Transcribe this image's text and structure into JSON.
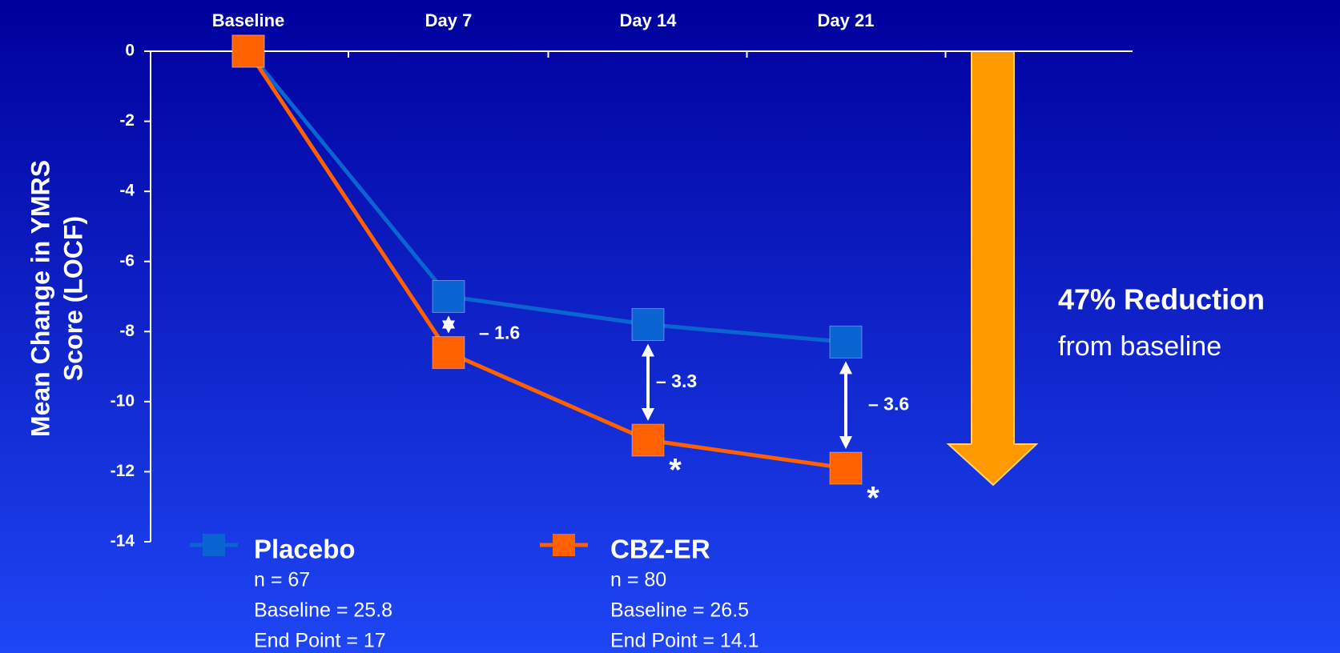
{
  "chart_data": {
    "type": "line",
    "categories": [
      "Baseline",
      "Day 7",
      "Day 14",
      "Day 21"
    ],
    "series": [
      {
        "name": "Placebo",
        "color": "#0a64d2",
        "values": [
          0,
          -7.0,
          -7.8,
          -8.3
        ],
        "details": [
          "n = 67",
          "Baseline = 25.8",
          "End Point = 17"
        ]
      },
      {
        "name": "CBZ-ER",
        "color": "#ff6000",
        "values": [
          0,
          -8.6,
          -11.1,
          -11.9
        ],
        "details": [
          "n = 80",
          "Baseline  = 26.5",
          "End Point = 14.1"
        ]
      }
    ],
    "y_label_lines": [
      "Mean Change in YMRS",
      "Score (LOCF)"
    ],
    "ylim": [
      -14,
      0
    ],
    "yticks": [
      0,
      -2,
      -4,
      -6,
      -8,
      -10,
      -12,
      -14
    ],
    "differences": [
      {
        "category": "Day 7",
        "label": "– 1.6"
      },
      {
        "category": "Day 14",
        "label": "– 3.3"
      },
      {
        "category": "Day 21",
        "label": "– 3.6"
      }
    ],
    "significance_marks": [
      {
        "category": "Day 14",
        "label": "*"
      },
      {
        "category": "Day 21",
        "label": "*"
      }
    ],
    "side_note": [
      "47% Reduction",
      "from baseline"
    ]
  }
}
